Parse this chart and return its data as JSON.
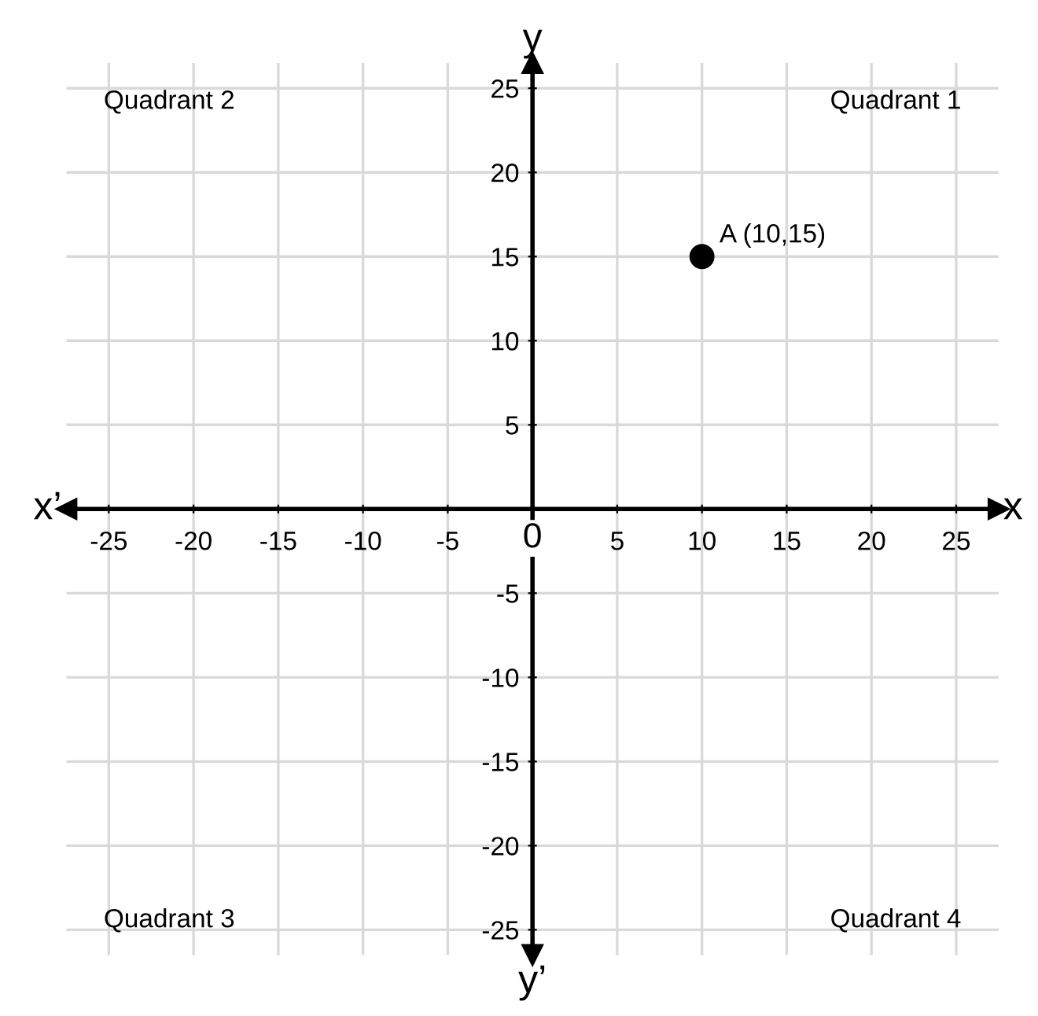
{
  "chart_data": {
    "type": "scatter",
    "xlabel": "x",
    "ylabel": "y",
    "x": [
      10
    ],
    "values": [
      15
    ],
    "color": "#000000",
    "marker": "circle",
    "xlim": [
      -27.5,
      27.5
    ],
    "ylim": [
      -26.5,
      26.5
    ],
    "xticks": [
      -25,
      -20,
      -15,
      -10,
      -5,
      {
        "value": 0,
        "label": "0"
      },
      5,
      10,
      15,
      20,
      25
    ],
    "yticks": [
      -25,
      -20,
      -15,
      -10,
      -5,
      {
        "value": 0,
        "label": null
      },
      5,
      10,
      15,
      20,
      25
    ],
    "grid": true,
    "annotations": [
      "Quadrant 2",
      "Quadrant 1",
      "Quadrant 3",
      "Quadrant 4",
      "x’",
      "y’",
      {
        "text": "A (10,15)",
        "x": 10,
        "y": 15
      }
    ]
  }
}
